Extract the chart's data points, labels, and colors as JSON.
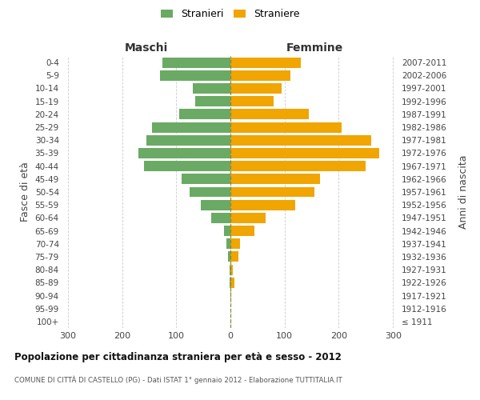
{
  "age_groups": [
    "100+",
    "95-99",
    "90-94",
    "85-89",
    "80-84",
    "75-79",
    "70-74",
    "65-69",
    "60-64",
    "55-59",
    "50-54",
    "45-49",
    "40-44",
    "35-39",
    "30-34",
    "25-29",
    "20-24",
    "15-19",
    "10-14",
    "5-9",
    "0-4"
  ],
  "birth_years": [
    "≤ 1911",
    "1912-1916",
    "1917-1921",
    "1922-1926",
    "1927-1931",
    "1932-1936",
    "1937-1941",
    "1942-1946",
    "1947-1951",
    "1952-1956",
    "1957-1961",
    "1962-1966",
    "1967-1971",
    "1972-1976",
    "1977-1981",
    "1982-1986",
    "1987-1991",
    "1992-1996",
    "1997-2001",
    "2002-2006",
    "2007-2011"
  ],
  "maschi": [
    0,
    0,
    0,
    2,
    2,
    5,
    7,
    12,
    35,
    55,
    75,
    90,
    160,
    170,
    155,
    145,
    95,
    65,
    70,
    130,
    125
  ],
  "femmine": [
    0,
    0,
    2,
    8,
    5,
    15,
    18,
    45,
    65,
    120,
    155,
    165,
    250,
    275,
    260,
    205,
    145,
    80,
    95,
    110,
    130
  ],
  "maschi_color": "#6aaa64",
  "femmine_color": "#f0a500",
  "bg_color": "#ffffff",
  "grid_color": "#cccccc",
  "dashed_color": "#888844",
  "title": "Popolazione per cittadinanza straniera per età e sesso - 2012",
  "subtitle": "COMUNE DI CITTÀ DI CASTELLO (PG) - Dati ISTAT 1° gennaio 2012 - Elaborazione TUTTITALIA.IT",
  "label_maschi": "Maschi",
  "label_femmine": "Femmine",
  "legend_stranieri": "Stranieri",
  "legend_straniere": "Straniere",
  "ylabel_left": "Fasce di età",
  "ylabel_right": "Anni di nascita",
  "xlim": 310,
  "figsize": [
    6.0,
    5.0
  ],
  "dpi": 100
}
